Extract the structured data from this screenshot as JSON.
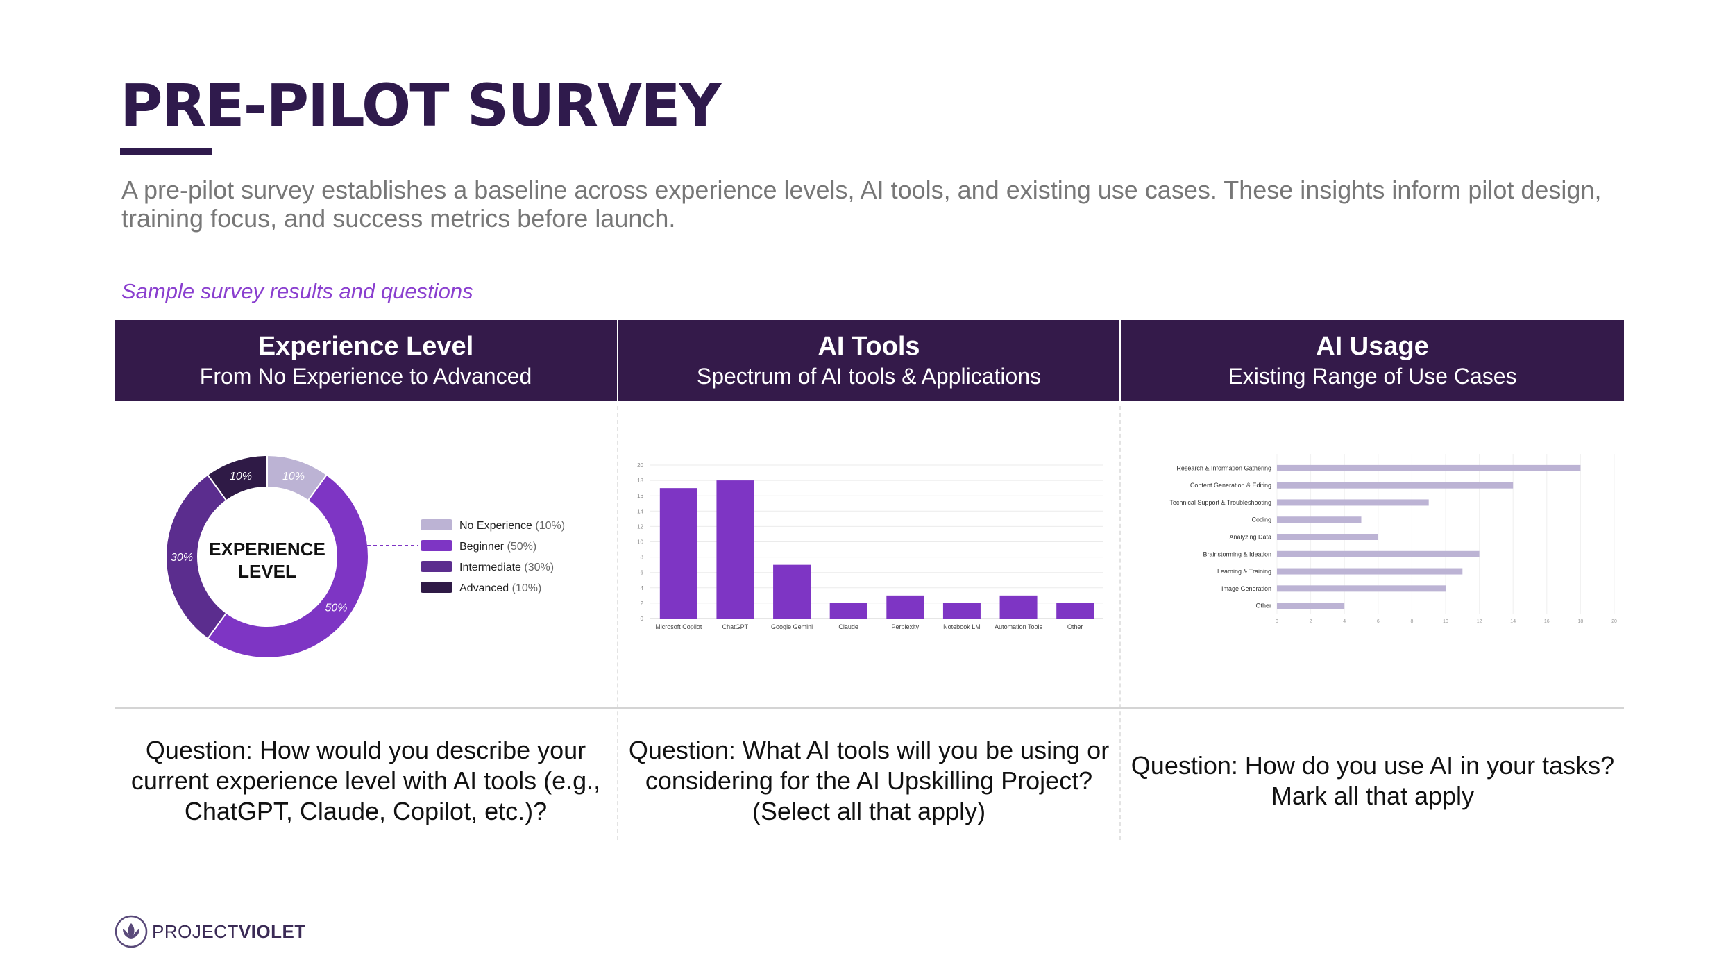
{
  "title": "PRE-PILOT SURVEY",
  "intro": "A pre-pilot survey establishes a baseline across experience levels, AI tools, and existing use cases. These insights inform pilot design, training focus, and success metrics before launch.",
  "section_label": "Sample survey results and questions",
  "columns": [
    {
      "title": "Experience Level",
      "subtitle": "From No Experience to Advanced",
      "question_label": "Question:",
      "question": "How would you describe your current experience level with AI tools (e.g., ChatGPT, Claude, Copilot, etc.)?"
    },
    {
      "title": "AI Tools",
      "subtitle": "Spectrum of AI tools & Applications",
      "question_label": "Question:",
      "question": "What AI tools will you be using or considering for the AI Upskilling Project? (Select all that apply)"
    },
    {
      "title": "AI Usage",
      "subtitle": "Existing Range of Use Cases",
      "question_label": "Question:",
      "question": "How do you use AI in your tasks? Mark all that apply"
    }
  ],
  "chart_data": [
    {
      "type": "pie",
      "center_label": [
        "EXPERIENCE",
        "LEVEL"
      ],
      "slices": [
        {
          "label": "No Experience",
          "value": 10,
          "display": "10%",
          "legend_pct": "(10%)",
          "color": "#bcb3d4"
        },
        {
          "label": "Beginner",
          "value": 50,
          "display": "50%",
          "legend_pct": "(50%)",
          "color": "#7e35c4"
        },
        {
          "label": "Intermediate",
          "value": 30,
          "display": "30%",
          "legend_pct": "(30%)",
          "color": "#5b2d8e"
        },
        {
          "label": "Advanced",
          "value": 10,
          "display": "10%",
          "legend_pct": "(10%)",
          "color": "#2f1a46"
        }
      ],
      "legend_position": "right"
    },
    {
      "type": "bar",
      "categories": [
        "Microsoft Copilot",
        "ChatGPT",
        "Google Gemini",
        "Claude",
        "Perplexity",
        "Notebook LM",
        "Automation Tools",
        "Other"
      ],
      "values": [
        17,
        18,
        7,
        2,
        3,
        2,
        3,
        2
      ],
      "ylim": [
        0,
        20
      ],
      "yticks": [
        "0",
        "2",
        "4",
        "6",
        "8",
        "10",
        "12",
        "14",
        "16",
        "18",
        "20"
      ],
      "grid": true,
      "color": "#7e35c4"
    },
    {
      "type": "bar",
      "orientation": "horizontal",
      "categories": [
        "Research & Information Gathering",
        "Content Generation & Editing",
        "Technical Support & Troubleshooting",
        "Coding",
        "Analyzing Data",
        "Brainstorming & Ideation",
        "Learning & Training",
        "Image Generation",
        "Other"
      ],
      "values": [
        18,
        14,
        9,
        5,
        6,
        12,
        11,
        10,
        4
      ],
      "xlim": [
        0,
        20
      ],
      "xticks": [
        "0",
        "2",
        "4",
        "6",
        "8",
        "10",
        "12",
        "14",
        "16",
        "18",
        "20"
      ],
      "grid": true,
      "color": "#bcb3d4"
    }
  ],
  "footer": {
    "brand_part1": "PROJECT",
    "brand_part2": "VIOLET"
  }
}
